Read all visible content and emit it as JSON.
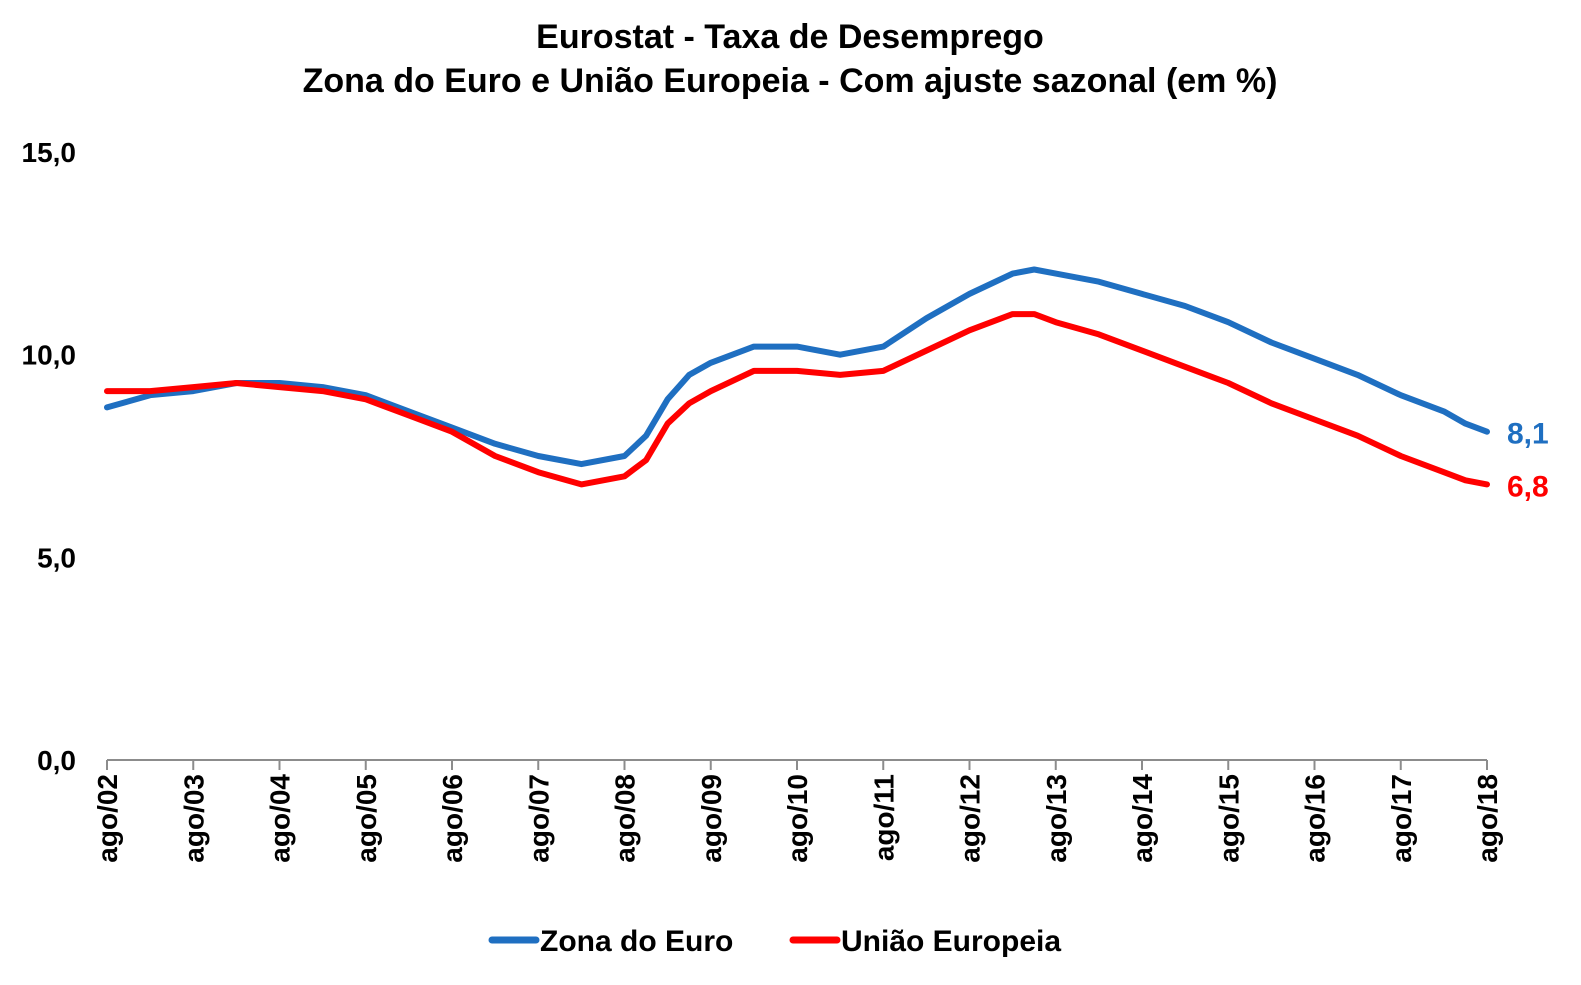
{
  "chart_data": {
    "type": "line",
    "title": "Eurostat - Taxa de Desemprego",
    "subtitle": "Zona do Euro e União Europeia - Com ajuste sazonal (em %)",
    "xlabel": "",
    "ylabel": "",
    "ylim": [
      0,
      15
    ],
    "y_ticks": [
      "0,0",
      "5,0",
      "10,0",
      "15,0"
    ],
    "y_tick_values": [
      0,
      5,
      10,
      15
    ],
    "grid": false,
    "legend_position": "bottom",
    "x_tick_labels": [
      "ago/02",
      "ago/03",
      "ago/04",
      "ago/05",
      "ago/06",
      "ago/07",
      "ago/08",
      "ago/09",
      "ago/10",
      "ago/11",
      "ago/12",
      "ago/13",
      "ago/14",
      "ago/15",
      "ago/16",
      "ago/17",
      "ago/18"
    ],
    "series": [
      {
        "name": "Zona do Euro",
        "color": "#1F6FC1",
        "end_label": "8,1",
        "points": [
          [
            "ago/02",
            8.7
          ],
          [
            "fev/03",
            9.0
          ],
          [
            "ago/03",
            9.1
          ],
          [
            "fev/04",
            9.3
          ],
          [
            "ago/04",
            9.3
          ],
          [
            "fev/05",
            9.2
          ],
          [
            "ago/05",
            9.0
          ],
          [
            "fev/06",
            8.6
          ],
          [
            "ago/06",
            8.2
          ],
          [
            "fev/07",
            7.8
          ],
          [
            "ago/07",
            7.5
          ],
          [
            "fev/08",
            7.3
          ],
          [
            "ago/08",
            7.5
          ],
          [
            "nov/08",
            8.0
          ],
          [
            "fev/09",
            8.9
          ],
          [
            "mai/09",
            9.5
          ],
          [
            "ago/09",
            9.8
          ],
          [
            "fev/10",
            10.2
          ],
          [
            "ago/10",
            10.2
          ],
          [
            "fev/11",
            10.0
          ],
          [
            "ago/11",
            10.2
          ],
          [
            "fev/12",
            10.9
          ],
          [
            "ago/12",
            11.5
          ],
          [
            "fev/13",
            12.0
          ],
          [
            "mai/13",
            12.1
          ],
          [
            "ago/13",
            12.0
          ],
          [
            "fev/14",
            11.8
          ],
          [
            "ago/14",
            11.5
          ],
          [
            "fev/15",
            11.2
          ],
          [
            "ago/15",
            10.8
          ],
          [
            "fev/16",
            10.3
          ],
          [
            "ago/16",
            9.9
          ],
          [
            "fev/17",
            9.5
          ],
          [
            "ago/17",
            9.0
          ],
          [
            "fev/18",
            8.6
          ],
          [
            "mai/18",
            8.3
          ],
          [
            "ago/18",
            8.1
          ]
        ]
      },
      {
        "name": "União Europeia",
        "color": "#FF0000",
        "end_label": "6,8",
        "points": [
          [
            "ago/02",
            9.1
          ],
          [
            "fev/03",
            9.1
          ],
          [
            "ago/03",
            9.2
          ],
          [
            "fev/04",
            9.3
          ],
          [
            "ago/04",
            9.2
          ],
          [
            "fev/05",
            9.1
          ],
          [
            "ago/05",
            8.9
          ],
          [
            "fev/06",
            8.5
          ],
          [
            "ago/06",
            8.1
          ],
          [
            "fev/07",
            7.5
          ],
          [
            "ago/07",
            7.1
          ],
          [
            "fev/08",
            6.8
          ],
          [
            "ago/08",
            7.0
          ],
          [
            "nov/08",
            7.4
          ],
          [
            "fev/09",
            8.3
          ],
          [
            "mai/09",
            8.8
          ],
          [
            "ago/09",
            9.1
          ],
          [
            "fev/10",
            9.6
          ],
          [
            "ago/10",
            9.6
          ],
          [
            "fev/11",
            9.5
          ],
          [
            "ago/11",
            9.6
          ],
          [
            "fev/12",
            10.1
          ],
          [
            "ago/12",
            10.6
          ],
          [
            "fev/13",
            11.0
          ],
          [
            "mai/13",
            11.0
          ],
          [
            "ago/13",
            10.8
          ],
          [
            "fev/14",
            10.5
          ],
          [
            "ago/14",
            10.1
          ],
          [
            "fev/15",
            9.7
          ],
          [
            "ago/15",
            9.3
          ],
          [
            "fev/16",
            8.8
          ],
          [
            "ago/16",
            8.4
          ],
          [
            "fev/17",
            8.0
          ],
          [
            "ago/17",
            7.5
          ],
          [
            "fev/18",
            7.1
          ],
          [
            "mai/18",
            6.9
          ],
          [
            "ago/18",
            6.8
          ]
        ]
      }
    ]
  }
}
